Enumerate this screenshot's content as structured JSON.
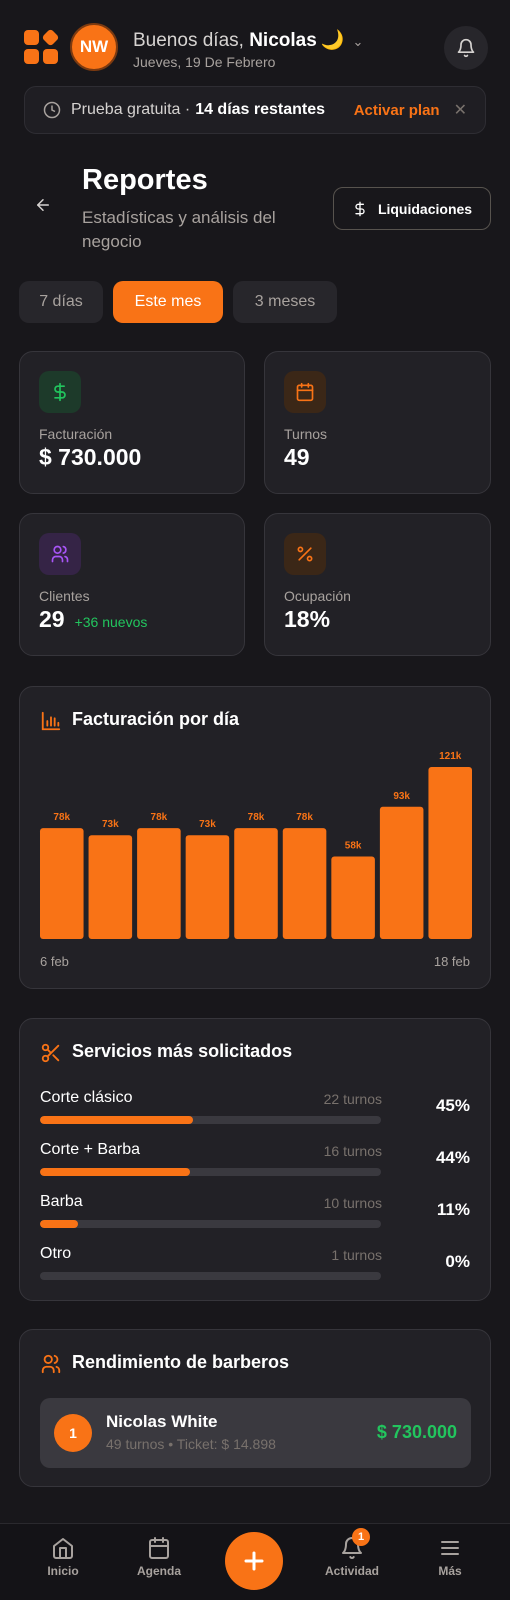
{
  "header": {
    "avatar_initials": "NW",
    "greeting": "Buenos días,",
    "user_name": "Nicolas",
    "emoji": "🌙",
    "date": "Jueves, 19 De Febrero"
  },
  "trial": {
    "label": "Prueba gratuita ·",
    "days": "14 días restantes",
    "action": "Activar plan"
  },
  "page": {
    "title": "Reportes",
    "subtitle": "Estadísticas y análisis del negocio",
    "liquidaciones_label": "Liquidaciones"
  },
  "tabs": [
    {
      "label": "7 días",
      "active": false
    },
    {
      "label": "Este mes",
      "active": true
    },
    {
      "label": "3 meses",
      "active": false
    }
  ],
  "stats": {
    "facturacion": {
      "label": "Facturación",
      "value": "$ 730.000"
    },
    "turnos": {
      "label": "Turnos",
      "value": "49"
    },
    "clientes": {
      "label": "Clientes",
      "value": "29",
      "sub": "+36 nuevos"
    },
    "ocupacion": {
      "label": "Ocupación",
      "value": "18%"
    }
  },
  "chart_title": "Facturación por día",
  "chart_data": {
    "type": "bar",
    "title": "Facturación por día",
    "x_start_label": "6 feb",
    "x_end_label": "18 feb",
    "values": [
      78000,
      73000,
      78000,
      73000,
      78000,
      78000,
      58000,
      93000,
      121000
    ],
    "data_labels": [
      "78k",
      "73k",
      "78k",
      "73k",
      "78k",
      "78k",
      "58k",
      "93k",
      "121k"
    ],
    "color": "#f97316"
  },
  "services": {
    "title": "Servicios más solicitados",
    "items": [
      {
        "name": "Corte clásico",
        "count": "22 turnos",
        "pct": "45%",
        "fill": 0.45
      },
      {
        "name": "Corte + Barba",
        "count": "16 turnos",
        "pct": "44%",
        "fill": 0.44
      },
      {
        "name": "Barba",
        "count": "10 turnos",
        "pct": "11%",
        "fill": 0.11
      },
      {
        "name": "Otro",
        "count": "1 turnos",
        "pct": "0%",
        "fill": 0
      }
    ]
  },
  "barbers": {
    "title": "Rendimiento de barberos",
    "items": [
      {
        "rank": "1",
        "name": "Nicolas White",
        "meta": "49 turnos • Ticket: $ 14.898",
        "amount": "$ 730.000"
      }
    ]
  },
  "nav": {
    "inicio": "Inicio",
    "agenda": "Agenda",
    "actividad": "Actividad",
    "actividad_badge": "1",
    "mas": "Más"
  },
  "colors": {
    "accent": "#f97316",
    "positive": "#22c55e",
    "background": "#18171b",
    "card": "#222126"
  }
}
